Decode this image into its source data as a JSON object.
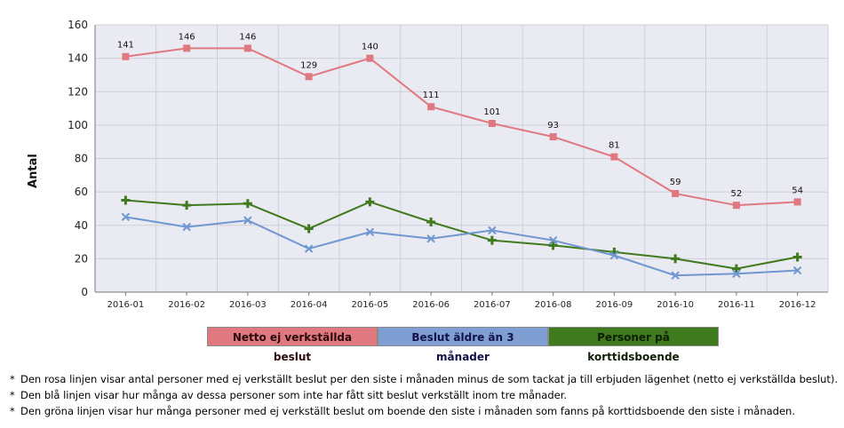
{
  "chart_data": {
    "type": "line",
    "title": "",
    "xlabel": "",
    "ylabel": "Antal",
    "ylim": [
      0,
      160
    ],
    "yticks": [
      0,
      20,
      40,
      60,
      80,
      100,
      120,
      140,
      160
    ],
    "grid": true,
    "legend": "bottom-center",
    "categories": [
      "2016-01",
      "2016-02",
      "2016-03",
      "2016-04",
      "2016-05",
      "2016-06",
      "2016-07",
      "2016-08",
      "2016-09",
      "2016-10",
      "2016-11",
      "2016-12"
    ],
    "series": [
      {
        "name": "Netto ej verkställda beslut",
        "color": "#e07880",
        "legend_bg": "#e07880",
        "marker": "square",
        "show_labels": true,
        "values": [
          141,
          146,
          146,
          129,
          140,
          111,
          101,
          93,
          81,
          59,
          52,
          54
        ]
      },
      {
        "name": "Beslut äldre än 3 månader",
        "color": "#6f97d0",
        "legend_bg": "#7f9fd3",
        "marker": "x",
        "show_labels": false,
        "values": [
          45,
          39,
          43,
          26,
          36,
          32,
          37,
          31,
          22,
          10,
          11,
          13
        ]
      },
      {
        "name": "Personer på korttidsboende",
        "color": "#3f7a1e",
        "legend_bg": "#3f7a1e",
        "marker": "plus",
        "show_labels": false,
        "values": [
          55,
          52,
          53,
          38,
          54,
          42,
          31,
          28,
          24,
          20,
          14,
          21
        ]
      }
    ]
  },
  "notes": [
    "Den rosa linjen visar antal personer med ej verkställt beslut per den siste i månaden minus de som tackat ja till erbjuden lägenhet (netto ej verkställda beslut).",
    "Den blå linjen visar hur många av dessa personer som inte har fått sitt beslut verkställt inom tre månader.",
    "Den gröna linjen visar hur många personer med ej verkställt beslut om boende den siste i månaden som fanns på korttidsboende den siste i månaden."
  ],
  "note_marker": "*"
}
